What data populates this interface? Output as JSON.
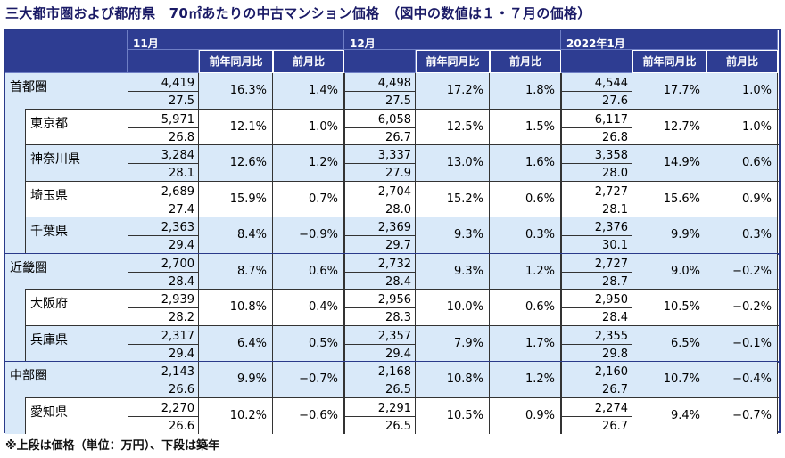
{
  "title": "三大都市圏および都府県　70㎡あたりの中古マンション価格　（図中の数値は１・７月の価格）",
  "footnote": "※上段は価格（単位：万円）、下段は築年",
  "months": [
    "11月",
    "12月",
    "2022年1月"
  ],
  "sub_headers": {
    "yoy": "前年同月比",
    "mom": "前月比"
  },
  "rows": [
    {
      "name": "首都圏",
      "level": 0,
      "band": "blue",
      "data": [
        [
          "4,419",
          "27.5",
          "16.3%",
          "1.4%"
        ],
        [
          "4,498",
          "27.5",
          "17.2%",
          "1.8%"
        ],
        [
          "4,544",
          "27.6",
          "17.7%",
          "1.0%"
        ]
      ]
    },
    {
      "name": "東京都",
      "level": 1,
      "band": "white",
      "data": [
        [
          "5,971",
          "26.8",
          "12.1%",
          "1.0%"
        ],
        [
          "6,058",
          "26.7",
          "12.5%",
          "1.5%"
        ],
        [
          "6,117",
          "26.8",
          "12.7%",
          "1.0%"
        ]
      ]
    },
    {
      "name": "神奈川県",
      "level": 1,
      "band": "blue",
      "data": [
        [
          "3,284",
          "28.1",
          "12.6%",
          "1.2%"
        ],
        [
          "3,337",
          "27.9",
          "13.0%",
          "1.6%"
        ],
        [
          "3,358",
          "28.0",
          "14.9%",
          "0.6%"
        ]
      ]
    },
    {
      "name": "埼玉県",
      "level": 1,
      "band": "white",
      "data": [
        [
          "2,689",
          "27.4",
          "15.9%",
          "0.7%"
        ],
        [
          "2,704",
          "28.0",
          "15.2%",
          "0.6%"
        ],
        [
          "2,727",
          "28.1",
          "15.6%",
          "0.9%"
        ]
      ]
    },
    {
      "name": "千葉県",
      "level": 1,
      "band": "blue",
      "data": [
        [
          "2,363",
          "29.4",
          "8.4%",
          "−0.9%"
        ],
        [
          "2,369",
          "29.7",
          "9.3%",
          "0.3%"
        ],
        [
          "2,376",
          "30.1",
          "9.9%",
          "0.3%"
        ]
      ]
    },
    {
      "name": "近畿圏",
      "level": 0,
      "band": "blue",
      "data": [
        [
          "2,700",
          "28.4",
          "8.7%",
          "0.6%"
        ],
        [
          "2,732",
          "28.4",
          "9.3%",
          "1.2%"
        ],
        [
          "2,727",
          "28.7",
          "9.0%",
          "−0.2%"
        ]
      ]
    },
    {
      "name": "大阪府",
      "level": 1,
      "band": "white",
      "data": [
        [
          "2,939",
          "28.2",
          "10.8%",
          "0.4%"
        ],
        [
          "2,956",
          "28.3",
          "10.0%",
          "0.6%"
        ],
        [
          "2,950",
          "28.4",
          "10.5%",
          "−0.2%"
        ]
      ]
    },
    {
      "name": "兵庫県",
      "level": 1,
      "band": "blue",
      "data": [
        [
          "2,317",
          "29.4",
          "6.4%",
          "0.5%"
        ],
        [
          "2,357",
          "29.4",
          "7.9%",
          "1.7%"
        ],
        [
          "2,355",
          "29.8",
          "6.5%",
          "−0.1%"
        ]
      ]
    },
    {
      "name": "中部圏",
      "level": 0,
      "band": "blue",
      "data": [
        [
          "2,143",
          "26.6",
          "9.9%",
          "−0.7%"
        ],
        [
          "2,168",
          "26.5",
          "10.8%",
          "1.2%"
        ],
        [
          "2,160",
          "26.7",
          "10.7%",
          "−0.4%"
        ]
      ]
    },
    {
      "name": "愛知県",
      "level": 1,
      "band": "white",
      "data": [
        [
          "2,270",
          "26.6",
          "10.2%",
          "−0.6%"
        ],
        [
          "2,291",
          "26.5",
          "10.5%",
          "0.9%"
        ],
        [
          "2,274",
          "26.7",
          "9.4%",
          "−0.7%"
        ]
      ]
    }
  ]
}
